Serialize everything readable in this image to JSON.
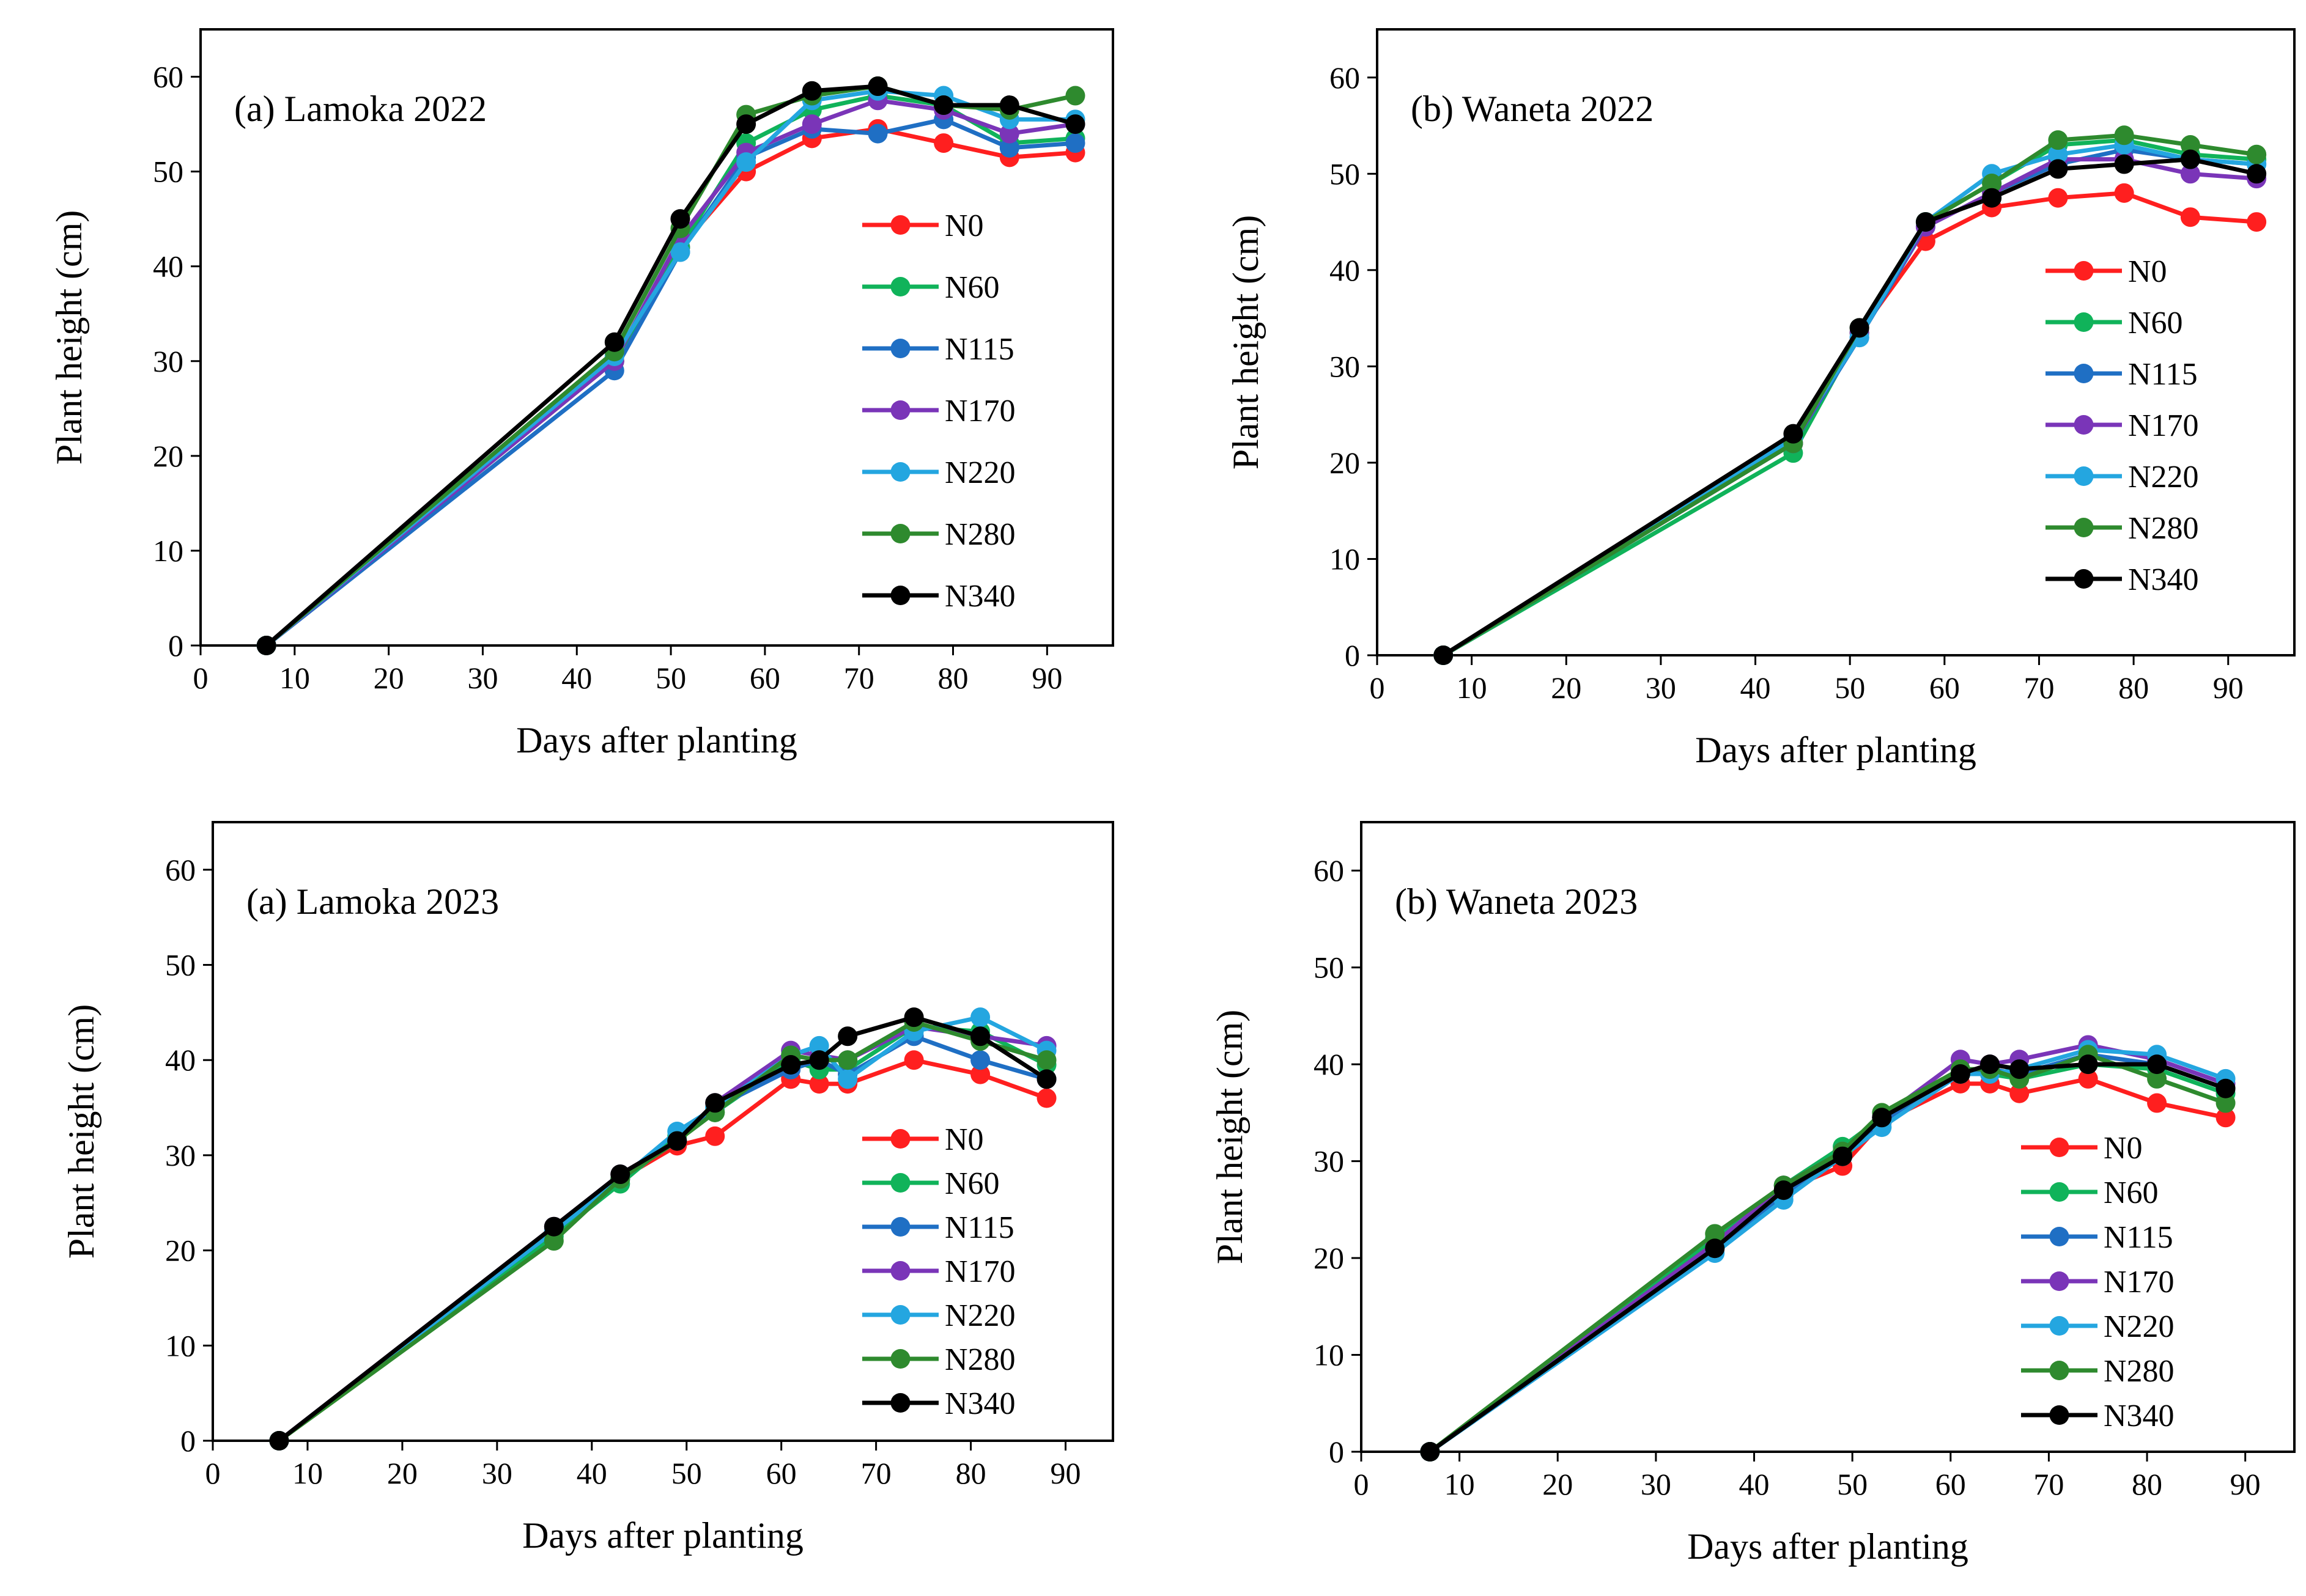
{
  "colors": {
    "N0": "#ff1f1f",
    "N60": "#10b35a",
    "N115": "#1f6fc4",
    "N170": "#7a35b8",
    "N220": "#24a6e0",
    "N280": "#2e8a2e",
    "N340": "#000000"
  },
  "chart_data": [
    {
      "type": "line",
      "title": "(a) Lamoka 2022",
      "xlabel": "Days after planting",
      "ylabel": "Plant height (cm)",
      "xlim": [
        0,
        97
      ],
      "ylim": [
        0,
        65
      ],
      "xticks": [
        "0",
        "10",
        "20",
        "30",
        "40",
        "50",
        "60",
        "70",
        "80",
        "90"
      ],
      "yticks": [
        "0",
        "10",
        "20",
        "30",
        "40",
        "50",
        "60"
      ],
      "legend_position": "right-middle",
      "x": [
        7,
        44,
        51,
        58,
        65,
        72,
        79,
        86,
        93
      ],
      "series": [
        {
          "name": "N0",
          "values": [
            0,
            30,
            42,
            50,
            53.5,
            54.5,
            53,
            51.5,
            52
          ]
        },
        {
          "name": "N60",
          "values": [
            0,
            30,
            42,
            53,
            56.5,
            58,
            57,
            53,
            53.5
          ]
        },
        {
          "name": "N115",
          "values": [
            0,
            29,
            41.5,
            51.5,
            54.5,
            54,
            55.5,
            52.5,
            53
          ]
        },
        {
          "name": "N170",
          "values": [
            0,
            30,
            43,
            52,
            55,
            57.5,
            56.5,
            54,
            55
          ]
        },
        {
          "name": "N220",
          "values": [
            0,
            30.5,
            41.5,
            51,
            57.5,
            58.5,
            58,
            55.5,
            55.5
          ]
        },
        {
          "name": "N280",
          "values": [
            0,
            31,
            44,
            56,
            58,
            59,
            57,
            56.5,
            58
          ]
        },
        {
          "name": "N340",
          "values": [
            0,
            32,
            45,
            55,
            58.5,
            59,
            57,
            57,
            55
          ]
        }
      ]
    },
    {
      "type": "line",
      "title": "(b) Waneta 2022",
      "xlabel": "Days after planting",
      "ylabel": "Plant height (cm)",
      "xlim": [
        0,
        97
      ],
      "ylim": [
        0,
        65
      ],
      "xticks": [
        "0",
        "10",
        "20",
        "30",
        "40",
        "50",
        "60",
        "70",
        "80",
        "90"
      ],
      "yticks": [
        "0",
        "10",
        "20",
        "30",
        "40",
        "50",
        "60"
      ],
      "legend_position": "right-middle",
      "x": [
        7,
        44,
        51,
        58,
        65,
        72,
        79,
        86,
        93
      ],
      "series": [
        {
          "name": "N0",
          "values": [
            0,
            22,
            33.5,
            43,
            46.5,
            47.5,
            48,
            45.5,
            45
          ]
        },
        {
          "name": "N60",
          "values": [
            0,
            21,
            33.5,
            45,
            49,
            53,
            53.5,
            52,
            51.5
          ]
        },
        {
          "name": "N115",
          "values": [
            0,
            22,
            33,
            44.5,
            48,
            51,
            52.5,
            51.5,
            51
          ]
        },
        {
          "name": "N170",
          "values": [
            0,
            22,
            33.5,
            44.5,
            48,
            51.5,
            51.5,
            50,
            49.5
          ]
        },
        {
          "name": "N220",
          "values": [
            0,
            22.5,
            33,
            45,
            50,
            52,
            53,
            51.5,
            51
          ]
        },
        {
          "name": "N280",
          "values": [
            0,
            22,
            34,
            45,
            49,
            53.5,
            54,
            53,
            52
          ]
        },
        {
          "name": "N340",
          "values": [
            0,
            23,
            34,
            45,
            47.5,
            50.5,
            51,
            51.5,
            50
          ]
        }
      ]
    },
    {
      "type": "line",
      "title": "(a) Lamoka 2023",
      "xlabel": "Days after planting",
      "ylabel": "Plant height (cm)",
      "xlim": [
        0,
        95
      ],
      "ylim": [
        0,
        65
      ],
      "xticks": [
        "0",
        "10",
        "20",
        "30",
        "40",
        "50",
        "60",
        "70",
        "80",
        "90"
      ],
      "yticks": [
        "0",
        "10",
        "20",
        "30",
        "40",
        "50",
        "60"
      ],
      "legend_position": "right-middle",
      "x": [
        7,
        36,
        43,
        49,
        53,
        61,
        64,
        67,
        74,
        81,
        88
      ],
      "series": [
        {
          "name": "N0",
          "values": [
            0,
            22,
            27.5,
            31,
            32,
            38,
            37.5,
            37.5,
            40,
            38.5,
            36
          ]
        },
        {
          "name": "N60",
          "values": [
            0,
            21.5,
            27,
            32,
            34.5,
            40,
            39,
            39,
            43.5,
            43,
            39.5
          ]
        },
        {
          "name": "N115",
          "values": [
            0,
            22,
            27.5,
            31.5,
            35,
            39,
            40,
            38.5,
            42.5,
            40,
            38
          ]
        },
        {
          "name": "N170",
          "values": [
            0,
            22.5,
            28,
            31.5,
            35.5,
            41,
            40.5,
            40,
            43.5,
            42.5,
            41.5
          ]
        },
        {
          "name": "N220",
          "values": [
            0,
            22,
            27.5,
            32.5,
            35,
            40.5,
            41.5,
            38,
            43,
            44.5,
            41
          ]
        },
        {
          "name": "N280",
          "values": [
            0,
            21,
            27.5,
            31.5,
            34.5,
            40.5,
            40,
            40,
            44,
            42,
            40
          ]
        },
        {
          "name": "N340",
          "values": [
            0,
            22.5,
            28,
            31.5,
            35.5,
            39.5,
            40,
            42.5,
            44.5,
            42.5,
            38
          ]
        }
      ]
    },
    {
      "type": "line",
      "title": "(b) Waneta 2023",
      "xlabel": "Days after planting",
      "ylabel": "Plant height (cm)",
      "xlim": [
        0,
        95
      ],
      "ylim": [
        0,
        65
      ],
      "xticks": [
        "0",
        "10",
        "20",
        "30",
        "40",
        "50",
        "60",
        "70",
        "80",
        "90"
      ],
      "yticks": [
        "0",
        "10",
        "20",
        "30",
        "40",
        "50",
        "60"
      ],
      "legend_position": "right-middle",
      "x": [
        7,
        36,
        43,
        49,
        53,
        61,
        64,
        67,
        74,
        81,
        88
      ],
      "series": [
        {
          "name": "N0",
          "values": [
            0,
            21.5,
            27,
            29.5,
            34,
            38,
            38,
            37,
            38.5,
            36,
            34.5
          ]
        },
        {
          "name": "N60",
          "values": [
            0,
            22,
            27.5,
            31.5,
            34.5,
            39,
            39,
            38.5,
            40,
            39.5,
            37
          ]
        },
        {
          "name": "N115",
          "values": [
            0,
            21,
            26.5,
            30.5,
            34,
            39,
            39.5,
            39,
            41,
            40,
            37.5
          ]
        },
        {
          "name": "N170",
          "values": [
            0,
            21.5,
            27.5,
            31,
            34.5,
            40.5,
            40,
            40.5,
            42,
            40.5,
            38
          ]
        },
        {
          "name": "N220",
          "values": [
            0,
            20.5,
            26,
            30.5,
            33.5,
            39,
            39,
            39.5,
            41.5,
            41,
            38.5
          ]
        },
        {
          "name": "N280",
          "values": [
            0,
            22.5,
            27.5,
            31,
            35,
            39.5,
            39.5,
            38.5,
            41,
            38.5,
            36
          ]
        },
        {
          "name": "N340",
          "values": [
            0,
            21,
            27,
            30.5,
            34.5,
            39,
            40,
            39.5,
            40,
            40,
            37.5
          ]
        }
      ]
    }
  ]
}
